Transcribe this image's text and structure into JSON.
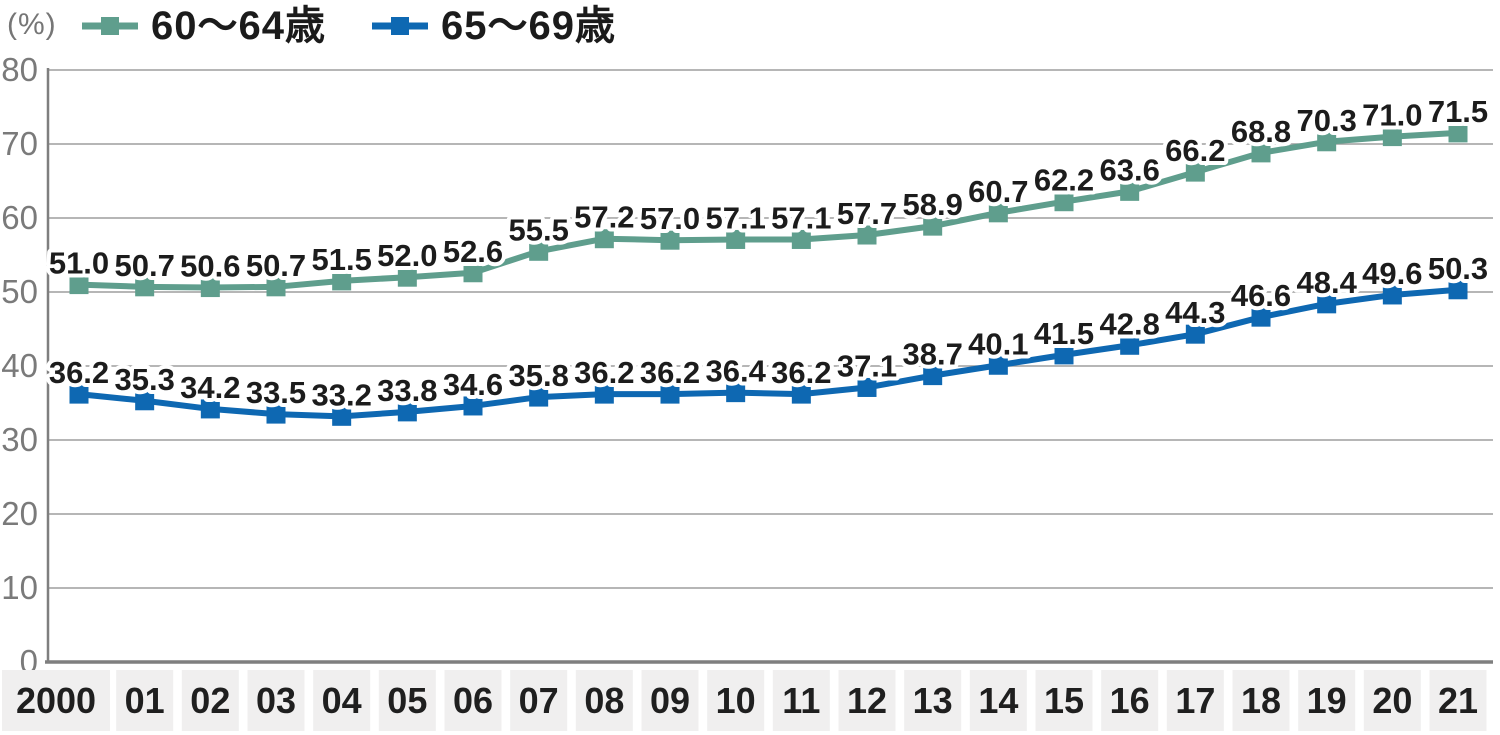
{
  "colors": {
    "series1": "#5f9e8d",
    "series2": "#0e68b2",
    "grid": "#9e9e9e",
    "axis": "#7f7f7f",
    "tick_box_bg": "#f0efef",
    "data_label_text": "#1c1c1c",
    "axis_text": "#7a7a7a",
    "x_label_text": "#1f1f1f"
  },
  "chart_data": {
    "type": "line",
    "title": "",
    "unit": "(%)",
    "xlabel": "",
    "ylabel": "(%)",
    "ylim": [
      0,
      80
    ],
    "yticks": [
      0,
      10,
      20,
      30,
      40,
      50,
      60,
      70,
      80
    ],
    "grid": true,
    "legend_position": "top-left",
    "data_labels": true,
    "marker": "square",
    "categories": [
      "2000",
      "01",
      "02",
      "03",
      "04",
      "05",
      "06",
      "07",
      "08",
      "09",
      "10",
      "11",
      "12",
      "13",
      "14",
      "15",
      "16",
      "17",
      "18",
      "19",
      "20",
      "21"
    ],
    "series": [
      {
        "name": "60〜64歳",
        "color": "#5f9e8d",
        "values": [
          51.0,
          50.7,
          50.6,
          50.7,
          51.5,
          52.0,
          52.6,
          55.5,
          57.2,
          57.0,
          57.1,
          57.1,
          57.7,
          58.9,
          60.7,
          62.2,
          63.6,
          66.2,
          68.8,
          70.3,
          71.0,
          71.5
        ]
      },
      {
        "name": "65〜69歳",
        "color": "#0e68b2",
        "values": [
          36.2,
          35.3,
          34.2,
          33.5,
          33.2,
          33.8,
          34.6,
          35.8,
          36.2,
          36.2,
          36.4,
          36.2,
          37.1,
          38.7,
          40.1,
          41.5,
          42.8,
          44.3,
          46.6,
          48.4,
          49.6,
          50.3
        ]
      }
    ]
  }
}
